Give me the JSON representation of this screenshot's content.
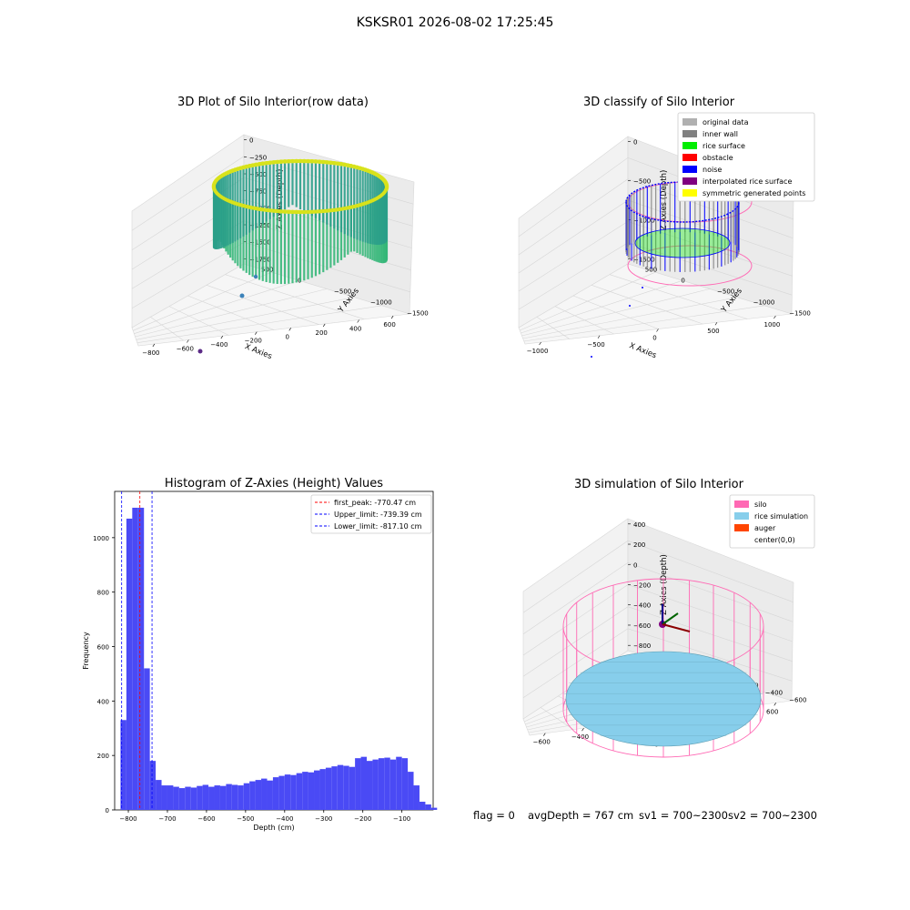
{
  "suptitle": "KSKSR01 2026-08-02 17:25:45",
  "footer": {
    "flag": "flag = 0",
    "avg_depth": "avgDepth = 767 cm",
    "sv1": "sv1 = 700~2300",
    "sv2": "sv2 = 700~2300"
  },
  "colors": {
    "original_data": "#b0b0b0",
    "inner_wall": "#808080",
    "rice_surface": "#00ee00",
    "obstacle": "#ff0000",
    "noise": "#0000ff",
    "interpolated_rice_surface": "#800080",
    "symmetric_generated_points": "#ffff00",
    "silo": "#ff69b4",
    "rice_simulation": "#87ceeb",
    "auger": "#ff4500",
    "histogram_bar": "#4a4af5"
  },
  "panels": {
    "raw": {
      "title": "3D Plot of Silo Interior(row data)",
      "xlabel": "X Axies",
      "ylabel": "Y Axies",
      "zlabel": "Z Axies (Depth)",
      "xticks": [
        "−800",
        "−600",
        "−400",
        "−200",
        "0",
        "200",
        "400",
        "600"
      ],
      "yticks": [
        "500",
        "0",
        "−500",
        "−1000",
        "−1500"
      ],
      "zticks": [
        "0",
        "−250",
        "−500",
        "−750",
        "−1000",
        "−1250",
        "−1500",
        "−1750"
      ]
    },
    "classify": {
      "title": "3D classify of Silo Interior",
      "xlabel": "X Axies",
      "ylabel": "Y Axies",
      "zlabel": "Z Axies (Depth)",
      "xticks": [
        "−1000",
        "−500",
        "0",
        "500",
        "1000"
      ],
      "yticks": [
        "500",
        "0",
        "−500",
        "−1000",
        "−1500"
      ],
      "zticks": [
        "0",
        "−500",
        "−1000",
        "−1500"
      ],
      "legend": [
        "original data",
        "inner wall",
        "rice surface",
        "obstacle",
        "noise",
        "interpolated rice surface",
        "symmetric generated points"
      ]
    },
    "simulation": {
      "title": "3D simulation of Silo Interior",
      "xlabel": "X Axies",
      "ylabel": "Y Axies",
      "zlabel": "Z Axies (Depth)",
      "xticks": [
        "−600",
        "−400",
        "−200",
        "0",
        "200",
        "400",
        "600"
      ],
      "yticks": [
        "600",
        "400",
        "200",
        "0",
        "−200",
        "−400",
        "−600"
      ],
      "zticks": [
        "400",
        "200",
        "0",
        "−200",
        "−400",
        "−600",
        "−800"
      ],
      "legend": [
        "silo",
        "rice simulation",
        "auger",
        "center(0,0)"
      ]
    }
  },
  "chart_data": [
    {
      "type": "scatter",
      "title": "3D Plot of Silo Interior(row data)",
      "xlabel": "X Axies",
      "ylabel": "Y Axies",
      "zlabel": "Z Axies (Depth)",
      "xlim": [
        -800,
        600
      ],
      "ylim": [
        -1500,
        500
      ],
      "zlim": [
        -1750,
        0
      ]
    },
    {
      "type": "scatter",
      "title": "3D classify of Silo Interior",
      "xlabel": "X Axies",
      "ylabel": "Y Axies",
      "zlabel": "Z Axies (Depth)",
      "xlim": [
        -1000,
        1000
      ],
      "ylim": [
        -1500,
        500
      ],
      "zlim": [
        -1500,
        0
      ]
    },
    {
      "type": "bar",
      "title": "Histogram of Z-Axies (Height) Values",
      "xlabel": "Depth (cm)",
      "ylabel": "Frequency",
      "xlim": [
        -835,
        -20
      ],
      "ylim": [
        0,
        1170
      ],
      "xticks": [
        -800,
        -700,
        -600,
        -500,
        -400,
        -300,
        -200,
        -100
      ],
      "yticks": [
        0,
        200,
        400,
        600,
        800,
        1000
      ],
      "bin_start": -820,
      "bin_width": 15,
      "values": [
        330,
        1070,
        1110,
        1110,
        520,
        180,
        110,
        90,
        90,
        85,
        80,
        85,
        82,
        88,
        92,
        85,
        90,
        88,
        95,
        92,
        90,
        98,
        105,
        110,
        115,
        108,
        120,
        125,
        130,
        128,
        135,
        140,
        138,
        145,
        150,
        155,
        160,
        165,
        162,
        158,
        190,
        195,
        180,
        185,
        190,
        192,
        185,
        195,
        190,
        140,
        90,
        30,
        20,
        8
      ],
      "lines": [
        {
          "label": "first_peak: -770.47 cm",
          "x": -770.47,
          "color": "#ff0000"
        },
        {
          "label": "Upper_limit: -739.39 cm",
          "x": -739.39,
          "color": "#0000ff"
        },
        {
          "label": "Lower_limit: -817.10 cm",
          "x": -817.1,
          "color": "#0000ff"
        }
      ]
    },
    {
      "type": "scatter",
      "title": "3D simulation of Silo Interior",
      "xlabel": "X Axies",
      "ylabel": "Y Axies",
      "zlabel": "Z Axies (Depth)",
      "xlim": [
        -600,
        600
      ],
      "ylim": [
        -600,
        600
      ],
      "zlim": [
        -800,
        400
      ]
    }
  ]
}
